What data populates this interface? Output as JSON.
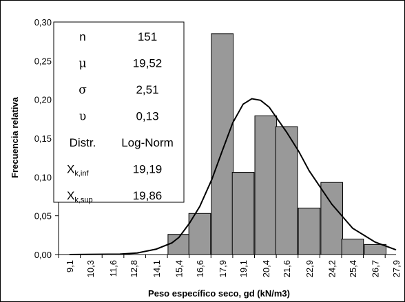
{
  "chart_data": {
    "type": "bar",
    "xlabel": "Peso específico seco, gd (kN/m3)",
    "ylabel": "Frecuencia relativa",
    "ylim": [
      0,
      0.3
    ],
    "yticks": [
      "0,00",
      "0,05",
      "0,10",
      "0,15",
      "0,20",
      "0,25",
      "0,30"
    ],
    "categories": [
      "9,1",
      "10,3",
      "11,6",
      "12,8",
      "14,1",
      "15,4",
      "16,6",
      "17,9",
      "19,1",
      "20,4",
      "21,6",
      "22,9",
      "24,2",
      "25,4",
      "26,7",
      "27,9"
    ],
    "x_numeric": [
      9.1,
      10.3,
      11.6,
      12.8,
      14.1,
      15.4,
      16.6,
      17.9,
      19.1,
      20.4,
      21.6,
      22.9,
      24.2,
      25.4,
      26.7,
      27.9
    ],
    "series": [
      {
        "type": "bar",
        "values": [
          0,
          0,
          0,
          0,
          0,
          0.026,
          0.053,
          0.285,
          0.106,
          0.179,
          0.165,
          0.06,
          0.093,
          0.02,
          0.013,
          0
        ]
      },
      {
        "type": "line",
        "x": [
          9.1,
          12,
          13,
          14.1,
          15,
          15.4,
          16,
          16.6,
          17.3,
          17.9,
          18.5,
          19.1,
          19.6,
          20.1,
          20.6,
          21.6,
          22.3,
          22.9,
          24.2,
          25.4,
          26.7,
          27.9
        ],
        "values": [
          0,
          0.0005,
          0.002,
          0.007,
          0.015,
          0.022,
          0.04,
          0.062,
          0.097,
          0.134,
          0.17,
          0.194,
          0.201,
          0.199,
          0.19,
          0.158,
          0.133,
          0.108,
          0.065,
          0.034,
          0.016,
          0.006
        ]
      }
    ],
    "colors": {
      "bar": "#999999",
      "bar_stroke": "#000000",
      "line": "#000000"
    },
    "grid": false,
    "stats_box": {
      "position": "top-left",
      "rows": [
        {
          "label": "n",
          "value": "151"
        },
        {
          "label": "μ",
          "value": "19,52"
        },
        {
          "label": "σ",
          "value": "2,51"
        },
        {
          "label": "υ",
          "value": "0,13"
        },
        {
          "label": "Distr.",
          "value": "Log-Norm"
        },
        {
          "label": "X",
          "label_sub": "k,inf",
          "value": "19,19"
        },
        {
          "label": "X",
          "label_sub": "k,sup",
          "value": "19,86"
        }
      ]
    }
  }
}
